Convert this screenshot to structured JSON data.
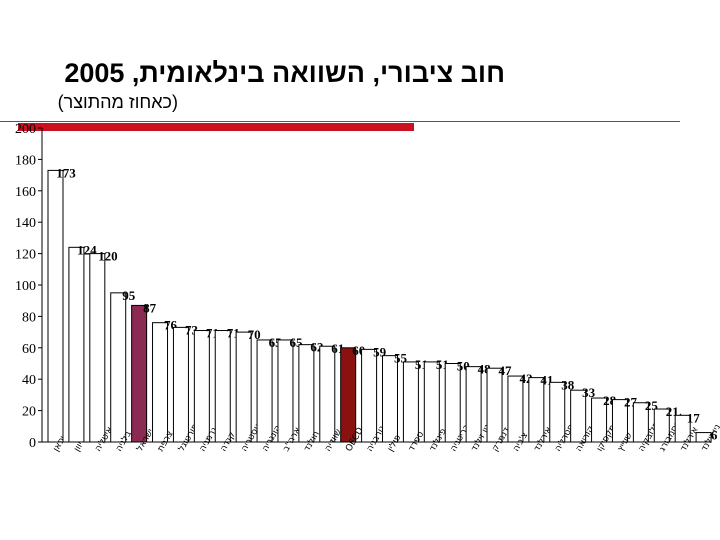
{
  "title": "חוב ציבורי, השוואה בינלאומית, 2005",
  "subtitle": "(כאחוז מהתוצר)",
  "chart_data": {
    "type": "bar",
    "title": "חוב ציבורי, השוואה בינלאומית, 2005",
    "subtitle": "(כאחוז מהתוצר)",
    "xlabel": "",
    "ylabel": "",
    "ylim": [
      0,
      200
    ],
    "yticks": [
      0,
      20,
      40,
      60,
      80,
      100,
      120,
      140,
      160,
      180,
      200
    ],
    "grid": false,
    "categories": [
      "יפאן",
      "יוון",
      "איטליה",
      "בלגיה",
      "ישראל",
      "צרפת",
      "פורטוגל",
      "גרמניה",
      "קנדה",
      "אוסטריה",
      "הונגריה",
      "ארה\"ב",
      "הולנד",
      "שוודיה",
      "OECD",
      "נורבגיה",
      "פולין",
      "ספרד",
      "פינלנד",
      "בריטניה",
      "ניו זילנד",
      "דנמרק",
      "צ'כיה",
      "אירלנד",
      "אוסטרליה",
      "קוריאה",
      "מקסיקו",
      "שווייץ",
      "סלובקיה",
      "לוקסמבורג",
      "אירלנד2",
      "ניו זילנד2"
    ],
    "values": [
      173,
      124,
      120,
      95,
      87,
      76,
      73,
      71,
      71,
      70,
      65,
      65,
      62,
      61,
      60,
      59,
      55,
      51,
      51,
      50,
      48,
      47,
      42,
      41,
      38,
      33,
      28,
      27,
      25,
      21,
      17,
      6
    ],
    "highlight": {
      "ישראל": "#8b2a52",
      "OECD": "#8b1010"
    },
    "colors": {
      "bar": "#ffffff",
      "outline": "#000000"
    }
  }
}
